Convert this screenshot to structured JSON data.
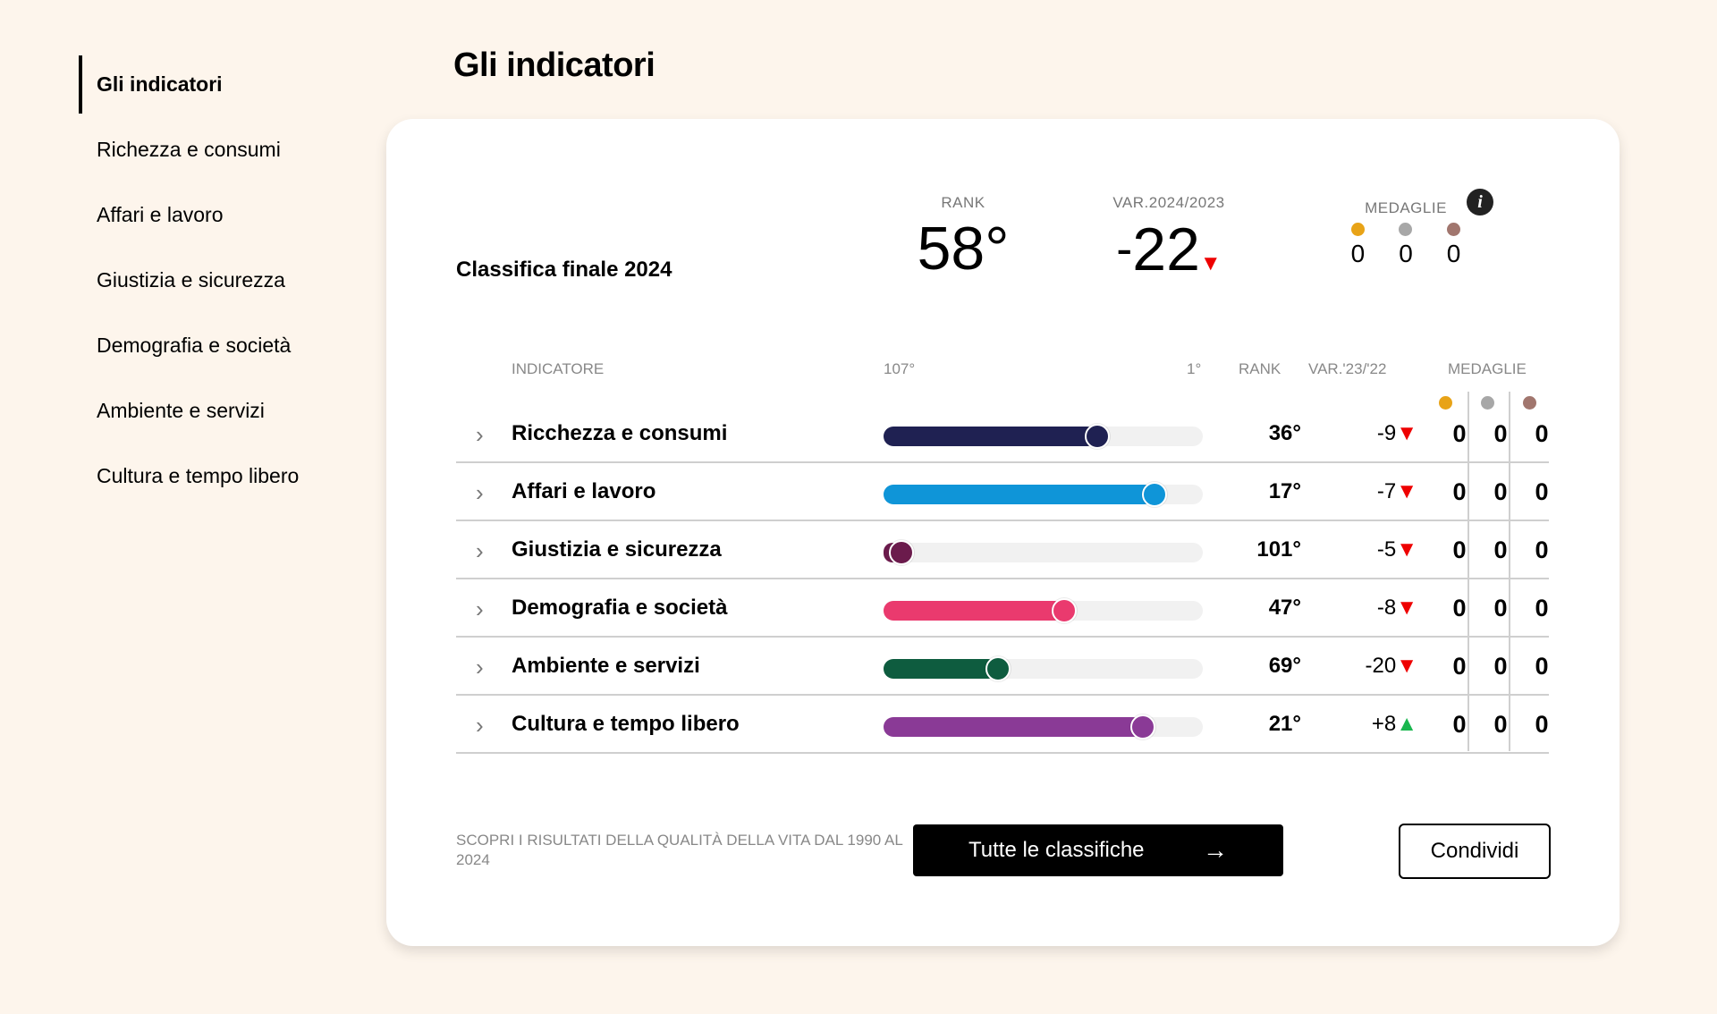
{
  "sidebar": {
    "items": [
      {
        "label": "Gli indicatori",
        "active": true
      },
      {
        "label": "Richezza e consumi",
        "active": false
      },
      {
        "label": "Affari e lavoro",
        "active": false
      },
      {
        "label": "Giustizia e sicurezza",
        "active": false
      },
      {
        "label": "Demografia e società",
        "active": false
      },
      {
        "label": "Ambiente e servizi",
        "active": false
      },
      {
        "label": "Cultura e tempo libero",
        "active": false
      }
    ]
  },
  "page_title": "Gli indicatori",
  "summary": {
    "title": "Classifica finale 2024",
    "rank_label": "RANK",
    "rank_value": "58°",
    "var_label": "VAR.2024/2023",
    "var_sign": "-",
    "var_value": "22",
    "var_trend": "▼",
    "medals_label": "MEDAGLIE",
    "info_icon": "i",
    "medals": [
      "0",
      "0",
      "0"
    ]
  },
  "medal_colors": {
    "gold": "#e8a317",
    "silver": "#a7a7a7",
    "bronze": "#a1766e"
  },
  "table": {
    "headers": {
      "indicator": "INDICATORE",
      "scale_min": "107°",
      "scale_max": "1°",
      "rank": "RANK",
      "var": "VAR.'23/'22",
      "medals": "MEDAGLIE"
    },
    "scale": {
      "worst": 107,
      "best": 1
    },
    "rows": [
      {
        "name": "Ricchezza e consumi",
        "rank": "36°",
        "rank_value": 36,
        "var": "-9",
        "trend": "▼",
        "color": "#1f2152",
        "medals": [
          "0",
          "0",
          "0"
        ]
      },
      {
        "name": "Affari e lavoro",
        "rank": "17°",
        "rank_value": 17,
        "var": "-7",
        "trend": "▼",
        "color": "#0f95d8",
        "medals": [
          "0",
          "0",
          "0"
        ]
      },
      {
        "name": "Giustizia e sicurezza",
        "rank": "101°",
        "rank_value": 101,
        "var": "-5",
        "trend": "▼",
        "color": "#6b1b4c",
        "medals": [
          "0",
          "0",
          "0"
        ]
      },
      {
        "name": "Demografia e società",
        "rank": "47°",
        "rank_value": 47,
        "var": "-8",
        "trend": "▼",
        "color": "#ea3a6e",
        "medals": [
          "0",
          "0",
          "0"
        ]
      },
      {
        "name": "Ambiente e servizi",
        "rank": "69°",
        "rank_value": 69,
        "var": "-20",
        "trend": "▼",
        "color": "#0e5c3f",
        "medals": [
          "0",
          "0",
          "0"
        ]
      },
      {
        "name": "Cultura e tempo libero",
        "rank": "21°",
        "rank_value": 21,
        "var": "+8",
        "trend": "▲",
        "color": "#8a3a96",
        "medals": [
          "0",
          "0",
          "0"
        ]
      }
    ]
  },
  "footer": {
    "note": "SCOPRI I RISULTATI DELLA QUALITÀ DELLA VITA DAL 1990 AL 2024",
    "primary_button": "Tutte le classifiche",
    "primary_arrow": "→",
    "secondary_button": "Condividi"
  }
}
